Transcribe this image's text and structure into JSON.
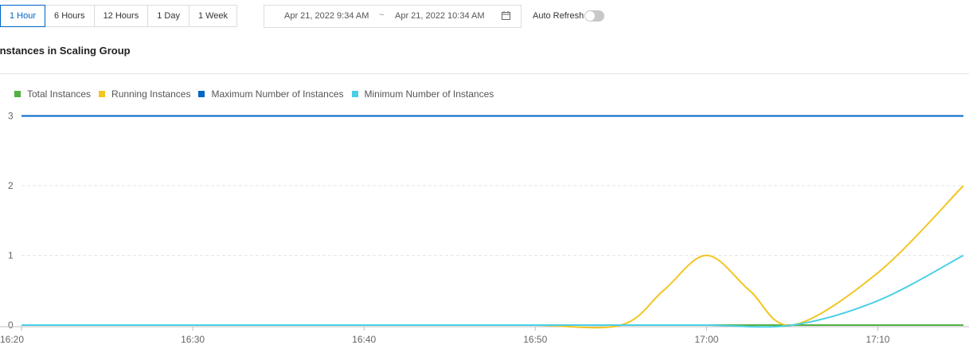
{
  "toolbar": {
    "ranges": [
      "1 Hour",
      "6 Hours",
      "12 Hours",
      "1 Day",
      "1 Week"
    ],
    "active_range": "1 Hour",
    "date_start": "Apr 21, 2022 9:34 AM",
    "date_separator": "~",
    "date_end": "Apr 21, 2022 10:34 AM",
    "auto_refresh_label": "Auto Refresh",
    "auto_refresh_on": false
  },
  "panel": {
    "title": "Instances in Scaling Group"
  },
  "chart_data": {
    "type": "line",
    "x": [
      "16:20",
      "16:25",
      "16:30",
      "16:35",
      "16:40",
      "16:45",
      "16:50",
      "16:55",
      "16:57.5",
      "17:00",
      "17:02.5",
      "17:05",
      "17:10",
      "17:15"
    ],
    "xticks": [
      "16:20",
      "16:30",
      "16:40",
      "16:50",
      "17:00",
      "17:10"
    ],
    "yticks": [
      0,
      1,
      2,
      3
    ],
    "ylim": [
      0,
      3
    ],
    "grid": true,
    "legend_position": "top-left",
    "series": [
      {
        "name": "Total Instances",
        "color": "#52b043",
        "values": [
          0,
          0,
          0,
          0,
          0,
          0,
          0,
          0,
          null,
          0,
          null,
          0,
          0,
          0
        ]
      },
      {
        "name": "Running Instances",
        "color": "#f2c521",
        "values": [
          0,
          0,
          0,
          0,
          0,
          0,
          0,
          0,
          0.5,
          1,
          0.5,
          0,
          0.75,
          2
        ]
      },
      {
        "name": "Maximum Number of Instances",
        "color": "#0064c8",
        "values": [
          3,
          3,
          3,
          3,
          3,
          3,
          3,
          3,
          null,
          3,
          null,
          3,
          3,
          3
        ]
      },
      {
        "name": "Minimum Number of Instances",
        "color": "#49d0e6",
        "values": [
          0,
          0,
          0,
          0,
          0,
          0,
          0,
          0,
          null,
          0,
          null,
          0,
          0.35,
          1
        ]
      }
    ]
  }
}
